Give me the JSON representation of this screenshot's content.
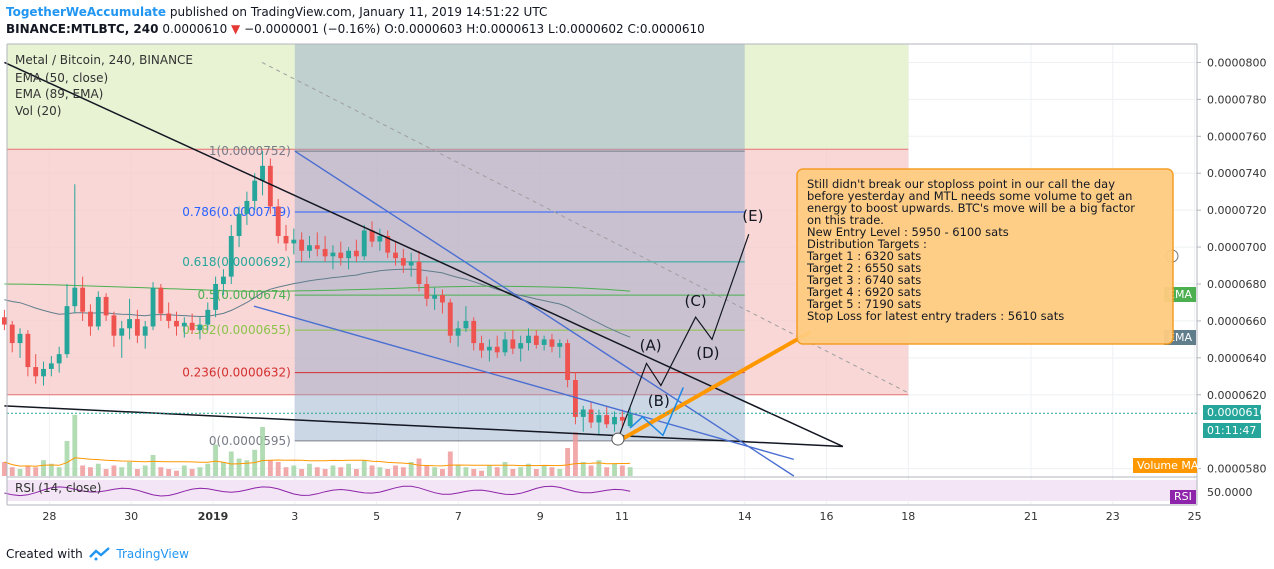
{
  "header": {
    "author": "TogetherWeAccumulate",
    "published": "published on TradingView.com, January 11, 2019 14:51:22 UTC",
    "symbol": "BINANCE:MTLBTC, 240",
    "last": "0.0000610",
    "change_arrow": "▼",
    "change": "−0.0000001 (−0.16%)",
    "ohlc": "O:0.0000603 H:0.0000613 L:0.0000602 C:0.0000610"
  },
  "legend": {
    "title": "Metal / Bitcoin, 240, BINANCE",
    "ema50": "EMA (50, close)",
    "ema89": "EMA (89, EMA)",
    "vol": "Vol (20)"
  },
  "footer": {
    "created": "Created with",
    "brand": "TradingView"
  },
  "chart_data": {
    "type": "candlestick",
    "ylim": [
      5.76e-05,
      8.1e-05
    ],
    "x_ticks": [
      {
        "label": "28",
        "day": -4
      },
      {
        "label": "30",
        "day": -2
      },
      {
        "label": "2019",
        "day": 0
      },
      {
        "label": "3",
        "day": 2
      },
      {
        "label": "5",
        "day": 4
      },
      {
        "label": "7",
        "day": 6
      },
      {
        "label": "9",
        "day": 8
      },
      {
        "label": "11",
        "day": 10
      },
      {
        "label": "14",
        "day": 13
      },
      {
        "label": "16",
        "day": 15
      },
      {
        "label": "18",
        "day": 17
      },
      {
        "label": "21",
        "day": 20
      },
      {
        "label": "23",
        "day": 22
      },
      {
        "label": "25",
        "day": 24
      }
    ],
    "y_ticks": [
      "0.0000800",
      "0.0000780",
      "0.0000760",
      "0.0000740",
      "0.0000720",
      "0.0000700",
      "0.0000680",
      "0.0000660",
      "0.0000640",
      "0.0000620",
      "0.0000580"
    ],
    "price_label": "0.0000610",
    "countdown_label": "01:11:47",
    "ema_tag": "EMA",
    "ema_tag2": "EMA",
    "volma_tag": "Volume MA",
    "rsi_label": "RSI (14, close)",
    "rsi_tag": "RSI",
    "rsi_tick": "50.0000",
    "fib_levels": [
      {
        "label": "1(0.0000752)",
        "value": 7.52e-05,
        "color": "#787b86"
      },
      {
        "label": "0.786(0.0000719)",
        "value": 7.19e-05,
        "color": "#2962ff"
      },
      {
        "label": "0.618(0.0000692)",
        "value": 6.92e-05,
        "color": "#26a69a"
      },
      {
        "label": "0.5(0.0000674)",
        "value": 6.74e-05,
        "color": "#4caf50"
      },
      {
        "label": "0.382(0.0000655)",
        "value": 6.55e-05,
        "color": "#8bc34a"
      },
      {
        "label": "0.236(0.0000632)",
        "value": 6.32e-05,
        "color": "#d32f2f"
      },
      {
        "label": "0(0.0000595)",
        "value": 5.95e-05,
        "color": "#787b86"
      }
    ],
    "wave_labels": [
      "(A)",
      "(B)",
      "(C)",
      "(D)",
      "(E)"
    ],
    "candles": [
      [
        6.62e-05,
        6.66e-05,
        6.55e-05,
        6.58e-05
      ],
      [
        6.58e-05,
        6.6e-05,
        6.43e-05,
        6.48e-05
      ],
      [
        6.48e-05,
        6.56e-05,
        6.4e-05,
        6.53e-05
      ],
      [
        6.53e-05,
        6.55e-05,
        6.3e-05,
        6.35e-05
      ],
      [
        6.35e-05,
        6.42e-05,
        6.26e-05,
        6.3e-05
      ],
      [
        6.3e-05,
        6.38e-05,
        6.25e-05,
        6.34e-05
      ],
      [
        6.34e-05,
        6.41e-05,
        6.3e-05,
        6.37e-05
      ],
      [
        6.37e-05,
        6.46e-05,
        6.32e-05,
        6.42e-05
      ],
      [
        6.42e-05,
        6.8e-05,
        6.4e-05,
        6.68e-05
      ],
      [
        6.68e-05,
        7.34e-05,
        6.64e-05,
        6.78e-05
      ],
      [
        6.78e-05,
        6.84e-05,
        6.6e-05,
        6.65e-05
      ],
      [
        6.65e-05,
        6.69e-05,
        6.52e-05,
        6.57e-05
      ],
      [
        6.57e-05,
        6.76e-05,
        6.55e-05,
        6.73e-05
      ],
      [
        6.73e-05,
        6.75e-05,
        6.6e-05,
        6.63e-05
      ],
      [
        6.63e-05,
        6.65e-05,
        6.46e-05,
        6.52e-05
      ],
      [
        6.52e-05,
        6.6e-05,
        6.4e-05,
        6.56e-05
      ],
      [
        6.56e-05,
        6.72e-05,
        6.5e-05,
        6.61e-05
      ],
      [
        6.61e-05,
        6.66e-05,
        6.48e-05,
        6.52e-05
      ],
      [
        6.52e-05,
        6.6e-05,
        6.45e-05,
        6.57e-05
      ],
      [
        6.57e-05,
        6.81e-05,
        6.55e-05,
        6.78e-05
      ],
      [
        6.78e-05,
        6.8e-05,
        6.6e-05,
        6.64e-05
      ],
      [
        6.64e-05,
        6.7e-05,
        6.56e-05,
        6.6e-05
      ],
      [
        6.6e-05,
        6.65e-05,
        6.52e-05,
        6.57e-05
      ],
      [
        6.57e-05,
        6.62e-05,
        6.51e-05,
        6.59e-05
      ],
      [
        6.59e-05,
        6.64e-05,
        6.53e-05,
        6.55e-05
      ],
      [
        6.55e-05,
        6.62e-05,
        6.5e-05,
        6.58e-05
      ],
      [
        6.58e-05,
        6.7e-05,
        6.55e-05,
        6.66e-05
      ],
      [
        6.66e-05,
        6.84e-05,
        6.62e-05,
        6.8e-05
      ],
      [
        6.8e-05,
        6.88e-05,
        6.74e-05,
        6.84e-05
      ],
      [
        6.84e-05,
        7.12e-05,
        6.8e-05,
        7.06e-05
      ],
      [
        7.06e-05,
        7.22e-05,
        7e-05,
        7.18e-05
      ],
      [
        7.18e-05,
        7.3e-05,
        7.12e-05,
        7.25e-05
      ],
      [
        7.25e-05,
        7.4e-05,
        7.2e-05,
        7.36e-05
      ],
      [
        7.36e-05,
        7.52e-05,
        7.28e-05,
        7.44e-05
      ],
      [
        7.44e-05,
        7.48e-05,
        7.18e-05,
        7.22e-05
      ],
      [
        7.22e-05,
        7.26e-05,
        7.02e-05,
        7.06e-05
      ],
      [
        7.06e-05,
        7.12e-05,
        6.98e-05,
        7.02e-05
      ],
      [
        7.02e-05,
        7.1e-05,
        6.96e-05,
        7.04e-05
      ],
      [
        7.04e-05,
        7.08e-05,
        6.92e-05,
        6.98e-05
      ],
      [
        6.98e-05,
        7.06e-05,
        6.94e-05,
        7.01e-05
      ],
      [
        7.01e-05,
        7.08e-05,
        6.95e-05,
        6.99e-05
      ],
      [
        6.99e-05,
        7.06e-05,
        6.92e-05,
        6.95e-05
      ],
      [
        6.95e-05,
        7.01e-05,
        6.88e-05,
        6.97e-05
      ],
      [
        6.97e-05,
        7.03e-05,
        6.9e-05,
        6.94e-05
      ],
      [
        6.94e-05,
        7e-05,
        6.88e-05,
        6.98e-05
      ],
      [
        6.98e-05,
        7.04e-05,
        6.92e-05,
        6.95e-05
      ],
      [
        6.95e-05,
        7.12e-05,
        6.93e-05,
        7.09e-05
      ],
      [
        7.09e-05,
        7.14e-05,
        7e-05,
        7.03e-05
      ],
      [
        7.03e-05,
        7.1e-05,
        6.98e-05,
        7.06e-05
      ],
      [
        7.06e-05,
        7.09e-05,
        6.94e-05,
        6.97e-05
      ],
      [
        6.97e-05,
        7.03e-05,
        6.9e-05,
        6.94e-05
      ],
      [
        6.94e-05,
        6.99e-05,
        6.86e-05,
        6.9e-05
      ],
      [
        6.9e-05,
        6.97e-05,
        6.84e-05,
        6.92e-05
      ],
      [
        6.92e-05,
        6.98e-05,
        6.76e-05,
        6.8e-05
      ],
      [
        6.8e-05,
        6.84e-05,
        6.68e-05,
        6.72e-05
      ],
      [
        6.72e-05,
        6.78e-05,
        6.66e-05,
        6.74e-05
      ],
      [
        6.74e-05,
        6.77e-05,
        6.64e-05,
        6.7e-05
      ],
      [
        6.7e-05,
        6.72e-05,
        6.48e-05,
        6.52e-05
      ],
      [
        6.52e-05,
        6.6e-05,
        6.46e-05,
        6.56e-05
      ],
      [
        6.56e-05,
        6.68e-05,
        6.54e-05,
        6.6e-05
      ],
      [
        6.6e-05,
        6.62e-05,
        6.44e-05,
        6.48e-05
      ],
      [
        6.48e-05,
        6.52e-05,
        6.4e-05,
        6.44e-05
      ],
      [
        6.44e-05,
        6.5e-05,
        6.38e-05,
        6.46e-05
      ],
      [
        6.46e-05,
        6.52e-05,
        6.4e-05,
        6.43e-05
      ],
      [
        6.43e-05,
        6.54e-05,
        6.41e-05,
        6.5e-05
      ],
      [
        6.5e-05,
        6.55e-05,
        6.42e-05,
        6.45e-05
      ],
      [
        6.45e-05,
        6.52e-05,
        6.38e-05,
        6.48e-05
      ],
      [
        6.48e-05,
        6.56e-05,
        6.44e-05,
        6.52e-05
      ],
      [
        6.52e-05,
        6.55e-05,
        6.45e-05,
        6.47e-05
      ],
      [
        6.47e-05,
        6.52e-05,
        6.44e-05,
        6.5e-05
      ],
      [
        6.5e-05,
        6.53e-05,
        6.43e-05,
        6.46e-05
      ],
      [
        6.46e-05,
        6.5e-05,
        6.4e-05,
        6.48e-05
      ],
      [
        6.48e-05,
        6.5e-05,
        6.24e-05,
        6.28e-05
      ],
      [
        6.28e-05,
        6.32e-05,
        6.04e-05,
        6.08e-05
      ],
      [
        6.08e-05,
        6.14e-05,
        6e-05,
        6.12e-05
      ],
      [
        6.12e-05,
        6.16e-05,
        6.02e-05,
        6.05e-05
      ],
      [
        6.05e-05,
        6.12e-05,
        5.98e-05,
        6.09e-05
      ],
      [
        6.09e-05,
        6.14e-05,
        6.02e-05,
        6.04e-05
      ],
      [
        6.04e-05,
        6.11e-05,
        6e-05,
        6.08e-05
      ],
      [
        6.08e-05,
        6.12e-05,
        6.02e-05,
        6.06e-05
      ],
      [
        6.03e-05,
        6.13e-05,
        6.02e-05,
        6.1e-05
      ]
    ],
    "volumes": [
      8,
      5,
      4,
      6,
      5,
      9,
      7,
      5,
      20,
      35,
      6,
      5,
      7,
      4,
      6,
      5,
      8,
      4,
      6,
      12,
      5,
      4,
      3,
      6,
      4,
      5,
      7,
      18,
      8,
      14,
      10,
      9,
      15,
      28,
      9,
      8,
      5,
      6,
      4,
      7,
      5,
      4,
      6,
      5,
      7,
      4,
      9,
      6,
      5,
      4,
      6,
      5,
      8,
      10,
      6,
      5,
      4,
      14,
      6,
      5,
      4,
      3,
      6,
      5,
      8,
      4,
      5,
      7,
      4,
      6,
      5,
      4,
      16,
      25,
      8,
      6,
      9,
      5,
      7,
      6,
      5
    ]
  }
}
